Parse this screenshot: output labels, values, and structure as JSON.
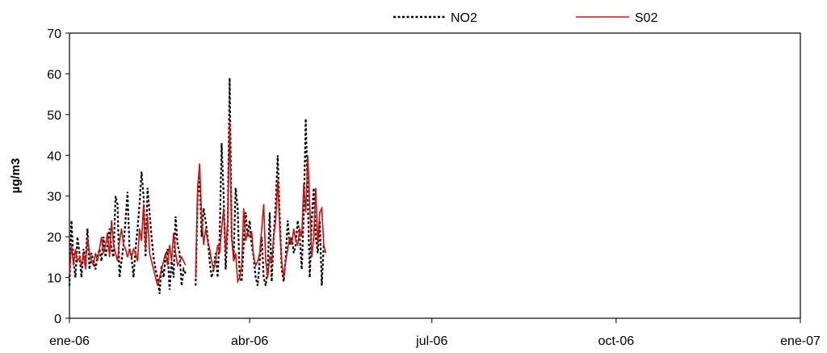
{
  "chart_data": {
    "type": "line",
    "title": "",
    "xlabel": "",
    "ylabel": "µg/m3",
    "ylim": [
      0,
      70
    ],
    "yticks": [
      0,
      10,
      20,
      30,
      40,
      50,
      60,
      70
    ],
    "xlim": [
      "2006-01-01",
      "2007-01-01"
    ],
    "xticks": [
      {
        "date": "2006-01-01",
        "label": "ene-06"
      },
      {
        "date": "2006-04-01",
        "label": "abr-06"
      },
      {
        "date": "2006-07-01",
        "label": "jul-06"
      },
      {
        "date": "2006-10-01",
        "label": "oct-06"
      },
      {
        "date": "2007-01-01",
        "label": "ene-07"
      }
    ],
    "grid": false,
    "legend": "top",
    "series": [
      {
        "name": "NO2",
        "color": "#000000",
        "style": "dotted",
        "points": [
          [
            "2006-01-01",
            8
          ],
          [
            "2006-01-02",
            24
          ],
          [
            "2006-01-03",
            14
          ],
          [
            "2006-01-04",
            10
          ],
          [
            "2006-01-05",
            20
          ],
          [
            "2006-01-06",
            16
          ],
          [
            "2006-01-07",
            10
          ],
          [
            "2006-01-08",
            17
          ],
          [
            "2006-01-09",
            14
          ],
          [
            "2006-01-10",
            22
          ],
          [
            "2006-01-11",
            12
          ],
          [
            "2006-01-12",
            16
          ],
          [
            "2006-01-13",
            14
          ],
          [
            "2006-01-14",
            12
          ],
          [
            "2006-01-15",
            15
          ],
          [
            "2006-01-16",
            17
          ],
          [
            "2006-01-17",
            14
          ],
          [
            "2006-01-18",
            20
          ],
          [
            "2006-01-19",
            15
          ],
          [
            "2006-01-20",
            18
          ],
          [
            "2006-01-21",
            22
          ],
          [
            "2006-01-22",
            17
          ],
          [
            "2006-01-23",
            15
          ],
          [
            "2006-01-24",
            30
          ],
          [
            "2006-01-25",
            28
          ],
          [
            "2006-01-26",
            10
          ],
          [
            "2006-01-27",
            14
          ],
          [
            "2006-01-28",
            18
          ],
          [
            "2006-01-29",
            24
          ],
          [
            "2006-01-30",
            31
          ],
          [
            "2006-01-31",
            17
          ],
          [
            "2006-02-01",
            15
          ],
          [
            "2006-02-02",
            10
          ],
          [
            "2006-02-03",
            17
          ],
          [
            "2006-02-04",
            22
          ],
          [
            "2006-02-05",
            28
          ],
          [
            "2006-02-06",
            36
          ],
          [
            "2006-02-07",
            30
          ],
          [
            "2006-02-08",
            15
          ],
          [
            "2006-02-09",
            32
          ],
          [
            "2006-02-10",
            26
          ],
          [
            "2006-02-11",
            20
          ],
          [
            "2006-02-12",
            15
          ],
          [
            "2006-02-13",
            12
          ],
          [
            "2006-02-14",
            10
          ],
          [
            "2006-02-15",
            6
          ],
          [
            "2006-02-16",
            13
          ],
          [
            "2006-02-17",
            10
          ],
          [
            "2006-02-18",
            15
          ],
          [
            "2006-02-19",
            17
          ],
          [
            "2006-02-20",
            7
          ],
          [
            "2006-02-21",
            14
          ],
          [
            "2006-02-22",
            10
          ],
          [
            "2006-02-23",
            25
          ],
          [
            "2006-02-24",
            18
          ],
          [
            "2006-02-25",
            16
          ],
          [
            "2006-02-26",
            8
          ],
          [
            "2006-02-27",
            12
          ],
          [
            "2006-02-28",
            11
          ],
          [
            "2006-03-05",
            8
          ],
          [
            "2006-03-06",
            30
          ],
          [
            "2006-03-07",
            35
          ],
          [
            "2006-03-08",
            20
          ],
          [
            "2006-03-09",
            27
          ],
          [
            "2006-03-10",
            24
          ],
          [
            "2006-03-11",
            20
          ],
          [
            "2006-03-12",
            14
          ],
          [
            "2006-03-13",
            10
          ],
          [
            "2006-03-14",
            12
          ],
          [
            "2006-03-15",
            16
          ],
          [
            "2006-03-16",
            10
          ],
          [
            "2006-03-17",
            20
          ],
          [
            "2006-03-18",
            43
          ],
          [
            "2006-03-19",
            30
          ],
          [
            "2006-03-20",
            12
          ],
          [
            "2006-03-21",
            22
          ],
          [
            "2006-03-22",
            59
          ],
          [
            "2006-03-23",
            20
          ],
          [
            "2006-03-24",
            15
          ],
          [
            "2006-03-25",
            32
          ],
          [
            "2006-03-26",
            27
          ],
          [
            "2006-03-27",
            10
          ],
          [
            "2006-03-28",
            9
          ],
          [
            "2006-03-29",
            18
          ],
          [
            "2006-03-30",
            26
          ],
          [
            "2006-03-31",
            20
          ],
          [
            "2006-04-01",
            24
          ],
          [
            "2006-04-02",
            18
          ],
          [
            "2006-04-03",
            15
          ],
          [
            "2006-04-04",
            10
          ],
          [
            "2006-04-05",
            8
          ],
          [
            "2006-04-06",
            14
          ],
          [
            "2006-04-07",
            20
          ],
          [
            "2006-04-08",
            10
          ],
          [
            "2006-04-09",
            8
          ],
          [
            "2006-04-10",
            12
          ],
          [
            "2006-04-11",
            26
          ],
          [
            "2006-04-12",
            9
          ],
          [
            "2006-04-13",
            20
          ],
          [
            "2006-04-14",
            28
          ],
          [
            "2006-04-15",
            40
          ],
          [
            "2006-04-16",
            25
          ],
          [
            "2006-04-17",
            12
          ],
          [
            "2006-04-18",
            9
          ],
          [
            "2006-04-19",
            15
          ],
          [
            "2006-04-20",
            24
          ],
          [
            "2006-04-21",
            18
          ],
          [
            "2006-04-22",
            20
          ],
          [
            "2006-04-23",
            16
          ],
          [
            "2006-04-24",
            18
          ],
          [
            "2006-04-25",
            24
          ],
          [
            "2006-04-26",
            20
          ],
          [
            "2006-04-27",
            12
          ],
          [
            "2006-04-28",
            26
          ],
          [
            "2006-04-29",
            49
          ],
          [
            "2006-04-30",
            30
          ],
          [
            "2006-05-01",
            10
          ],
          [
            "2006-05-02",
            24
          ],
          [
            "2006-05-03",
            32
          ],
          [
            "2006-05-04",
            20
          ],
          [
            "2006-05-05",
            16
          ],
          [
            "2006-05-06",
            24
          ],
          [
            "2006-05-07",
            8
          ],
          [
            "2006-05-08",
            18
          ]
        ]
      },
      {
        "name": "S02",
        "color": "#d01010",
        "style": "solid",
        "points": [
          [
            "2006-01-01",
            11
          ],
          [
            "2006-01-02",
            18
          ],
          [
            "2006-01-03",
            13
          ],
          [
            "2006-01-04",
            17
          ],
          [
            "2006-01-05",
            14
          ],
          [
            "2006-01-06",
            15
          ],
          [
            "2006-01-07",
            13
          ],
          [
            "2006-01-08",
            16
          ],
          [
            "2006-01-09",
            12
          ],
          [
            "2006-01-10",
            20
          ],
          [
            "2006-01-11",
            16
          ],
          [
            "2006-01-12",
            14
          ],
          [
            "2006-01-13",
            13
          ],
          [
            "2006-01-14",
            16
          ],
          [
            "2006-01-15",
            14
          ],
          [
            "2006-01-16",
            17
          ],
          [
            "2006-01-17",
            20
          ],
          [
            "2006-01-18",
            16
          ],
          [
            "2006-01-19",
            18
          ],
          [
            "2006-01-20",
            21
          ],
          [
            "2006-01-21",
            15
          ],
          [
            "2006-01-22",
            24
          ],
          [
            "2006-01-23",
            18
          ],
          [
            "2006-01-24",
            16
          ],
          [
            "2006-01-25",
            14
          ],
          [
            "2006-01-26",
            19
          ],
          [
            "2006-01-27",
            22
          ],
          [
            "2006-01-28",
            18
          ],
          [
            "2006-01-29",
            17
          ],
          [
            "2006-01-30",
            15
          ],
          [
            "2006-01-31",
            17
          ],
          [
            "2006-02-01",
            15
          ],
          [
            "2006-02-02",
            17
          ],
          [
            "2006-02-03",
            16
          ],
          [
            "2006-02-04",
            14
          ],
          [
            "2006-02-05",
            22
          ],
          [
            "2006-02-06",
            19
          ],
          [
            "2006-02-07",
            28
          ],
          [
            "2006-02-08",
            17
          ],
          [
            "2006-02-09",
            25
          ],
          [
            "2006-02-10",
            16
          ],
          [
            "2006-02-11",
            14
          ],
          [
            "2006-02-12",
            12
          ],
          [
            "2006-02-13",
            10
          ],
          [
            "2006-02-14",
            8
          ],
          [
            "2006-02-15",
            10
          ],
          [
            "2006-02-16",
            12
          ],
          [
            "2006-02-17",
            14
          ],
          [
            "2006-02-18",
            16
          ],
          [
            "2006-02-19",
            13
          ],
          [
            "2006-02-20",
            18
          ],
          [
            "2006-02-21",
            14
          ],
          [
            "2006-02-22",
            21
          ],
          [
            "2006-02-23",
            16
          ],
          [
            "2006-02-24",
            13
          ],
          [
            "2006-02-25",
            14
          ],
          [
            "2006-02-26",
            15
          ],
          [
            "2006-02-27",
            14
          ],
          [
            "2006-02-28",
            13
          ],
          [
            "2006-03-05",
            10
          ],
          [
            "2006-03-06",
            32
          ],
          [
            "2006-03-07",
            38
          ],
          [
            "2006-03-08",
            25
          ],
          [
            "2006-03-09",
            18
          ],
          [
            "2006-03-10",
            22
          ],
          [
            "2006-03-11",
            19
          ],
          [
            "2006-03-12",
            17
          ],
          [
            "2006-03-13",
            14
          ],
          [
            "2006-03-14",
            12
          ],
          [
            "2006-03-15",
            14
          ],
          [
            "2006-03-16",
            18
          ],
          [
            "2006-03-17",
            16
          ],
          [
            "2006-03-18",
            22
          ],
          [
            "2006-03-19",
            27
          ],
          [
            "2006-03-20",
            16
          ],
          [
            "2006-03-21",
            24
          ],
          [
            "2006-03-22",
            48
          ],
          [
            "2006-03-23",
            20
          ],
          [
            "2006-03-24",
            14
          ],
          [
            "2006-03-25",
            16
          ],
          [
            "2006-03-26",
            9
          ],
          [
            "2006-03-27",
            10
          ],
          [
            "2006-03-28",
            13
          ],
          [
            "2006-03-29",
            27
          ],
          [
            "2006-03-30",
            19
          ],
          [
            "2006-03-31",
            21
          ],
          [
            "2006-04-01",
            20
          ],
          [
            "2006-04-02",
            21
          ],
          [
            "2006-04-03",
            15
          ],
          [
            "2006-04-04",
            13
          ],
          [
            "2006-04-05",
            14
          ],
          [
            "2006-04-06",
            16
          ],
          [
            "2006-04-07",
            22
          ],
          [
            "2006-04-08",
            28
          ],
          [
            "2006-04-09",
            14
          ],
          [
            "2006-04-10",
            10
          ],
          [
            "2006-04-11",
            15
          ],
          [
            "2006-04-12",
            14
          ],
          [
            "2006-04-13",
            20
          ],
          [
            "2006-04-14",
            24
          ],
          [
            "2006-04-15",
            34
          ],
          [
            "2006-04-16",
            22
          ],
          [
            "2006-04-17",
            14
          ],
          [
            "2006-04-18",
            10
          ],
          [
            "2006-04-19",
            14
          ],
          [
            "2006-04-20",
            17
          ],
          [
            "2006-04-21",
            20
          ],
          [
            "2006-04-22",
            18
          ],
          [
            "2006-04-23",
            22
          ],
          [
            "2006-04-24",
            19
          ],
          [
            "2006-04-25",
            18
          ],
          [
            "2006-04-26",
            22
          ],
          [
            "2006-04-27",
            20
          ],
          [
            "2006-04-28",
            33
          ],
          [
            "2006-04-29",
            26
          ],
          [
            "2006-04-30",
            40
          ],
          [
            "2006-05-01",
            28
          ],
          [
            "2006-05-02",
            15
          ],
          [
            "2006-05-03",
            20
          ],
          [
            "2006-05-04",
            32
          ],
          [
            "2006-05-05",
            18
          ],
          [
            "2006-05-06",
            26
          ],
          [
            "2006-05-07",
            27
          ],
          [
            "2006-05-08",
            18
          ],
          [
            "2006-05-09",
            16
          ]
        ]
      }
    ]
  }
}
